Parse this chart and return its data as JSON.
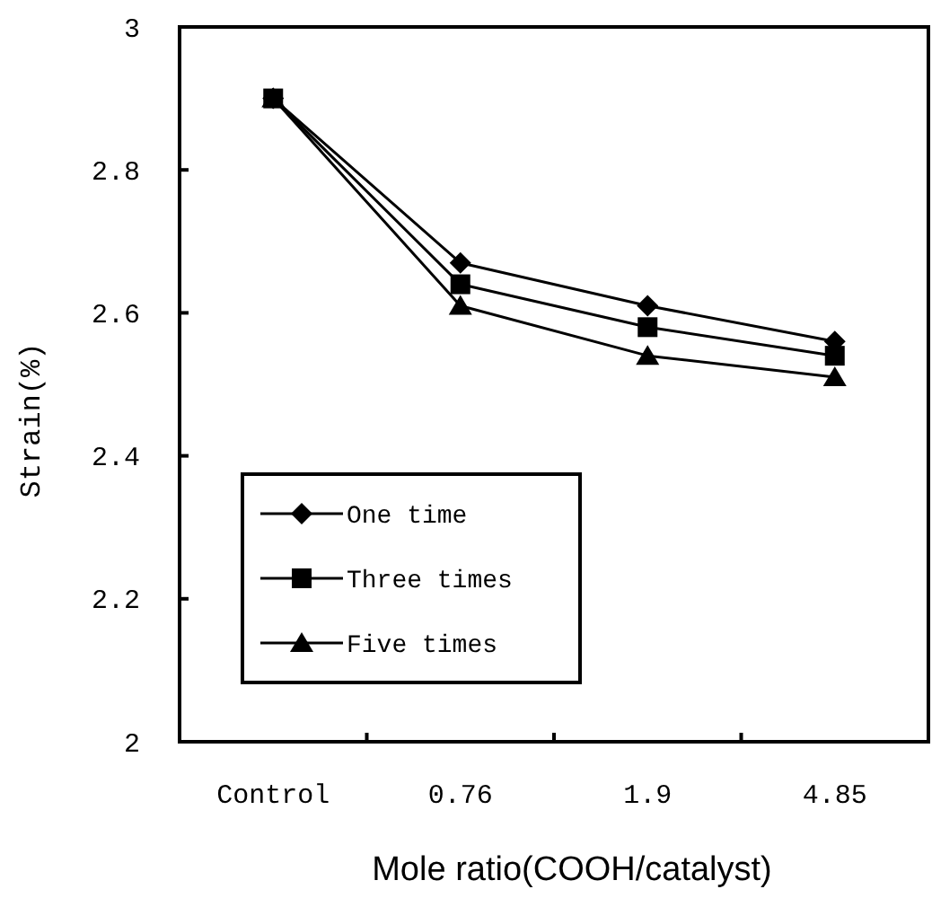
{
  "chart_data": {
    "type": "line",
    "xlabel": "Mole ratio(COOH/catalyst)",
    "ylabel": "Strain(%)",
    "categories": [
      "Control",
      "0.76",
      "1.9",
      "4.85"
    ],
    "ylim": [
      2,
      3
    ],
    "yticks": [
      2,
      2.2,
      2.4,
      2.6,
      2.8,
      3
    ],
    "grid": false,
    "legend": "bottom left",
    "line_style": "solid",
    "series": [
      {
        "name": "One time",
        "color": "#000000",
        "marker": "diamond",
        "values": [
          2.9,
          2.67,
          2.61,
          2.56
        ]
      },
      {
        "name": "Three times",
        "color": "#000000",
        "marker": "square",
        "values": [
          2.9,
          2.64,
          2.58,
          2.54
        ]
      },
      {
        "name": "Five times",
        "color": "#000000",
        "marker": "triangle",
        "values": [
          2.9,
          2.61,
          2.54,
          2.51
        ]
      }
    ]
  }
}
